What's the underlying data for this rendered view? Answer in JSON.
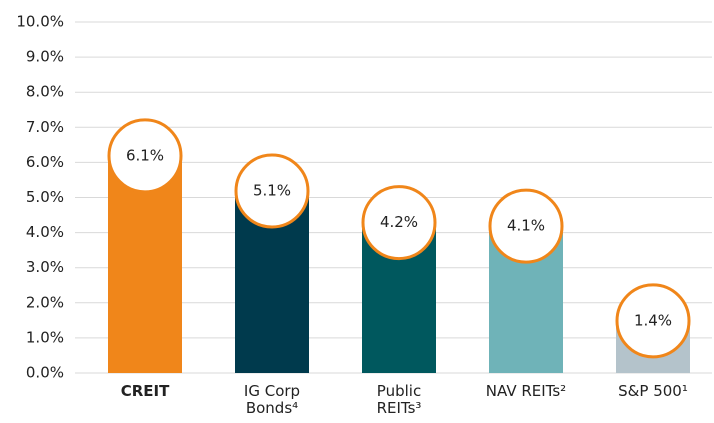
{
  "chart_data": {
    "type": "bar",
    "categories": [
      "CREIT",
      "IG Corp\nBonds⁴",
      "Public\nREITs³",
      "NAV REITs²",
      "S&P 500¹"
    ],
    "values": [
      6.1,
      5.1,
      4.2,
      4.1,
      1.4
    ],
    "value_labels": [
      "6.1%",
      "5.1%",
      "4.2%",
      "4.1%",
      "1.4%"
    ],
    "colors": [
      "#f0861a",
      "#003a4d",
      "#00585e",
      "#6fb3b8",
      "#b4c3cb"
    ],
    "ylim": [
      0,
      10
    ],
    "yticks": [
      {
        "value": 0,
        "label": "0.0%"
      },
      {
        "value": 1,
        "label": "1.0%"
      },
      {
        "value": 2,
        "label": "2.0%"
      },
      {
        "value": 3,
        "label": "3.0%"
      },
      {
        "value": 4,
        "label": "4.0%"
      },
      {
        "value": 5,
        "label": "5.0%"
      },
      {
        "value": 6,
        "label": "6.0%"
      },
      {
        "value": 7,
        "label": "7.0%"
      },
      {
        "value": 8,
        "label": "8.0%"
      },
      {
        "value": 9,
        "label": "9.0%"
      },
      {
        "value": 10,
        "label": "10.0%"
      }
    ],
    "grid": true
  }
}
